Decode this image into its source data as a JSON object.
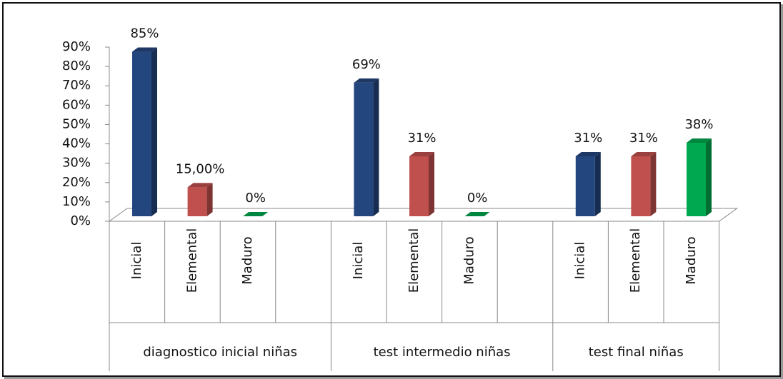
{
  "chart_data": {
    "type": "bar",
    "ylim": [
      0,
      90
    ],
    "yticks": [
      {
        "value": 0,
        "label": "0%"
      },
      {
        "value": 10,
        "label": "10%"
      },
      {
        "value": 20,
        "label": "20%"
      },
      {
        "value": 30,
        "label": "30%"
      },
      {
        "value": 40,
        "label": "40%"
      },
      {
        "value": 50,
        "label": "50%"
      },
      {
        "value": 60,
        "label": "60%"
      },
      {
        "value": 70,
        "label": "70%"
      },
      {
        "value": 80,
        "label": "80%"
      },
      {
        "value": 90,
        "label": "90%"
      }
    ],
    "colors": [
      "#24467e",
      "#c0504d",
      "#00a84f"
    ],
    "groups": [
      {
        "name": "diagnostico inicial niñas",
        "categories": [
          "Inicial",
          "Elemental",
          "Maduro",
          null
        ],
        "values": [
          85,
          15,
          0,
          null
        ],
        "value_labels": [
          "85%",
          "15,00%",
          "0%",
          null
        ]
      },
      {
        "name": "test intermedio niñas",
        "categories": [
          "Inicial",
          "Elemental",
          "Maduro",
          null
        ],
        "values": [
          69,
          31,
          0,
          null
        ],
        "value_labels": [
          "69%",
          "31%",
          "0%",
          null
        ]
      },
      {
        "name": "test final niñas",
        "categories": [
          "Inicial",
          "Elemental",
          "Maduro"
        ],
        "values": [
          31,
          31,
          38
        ],
        "value_labels": [
          "31%",
          "31%",
          "38%"
        ]
      }
    ]
  }
}
